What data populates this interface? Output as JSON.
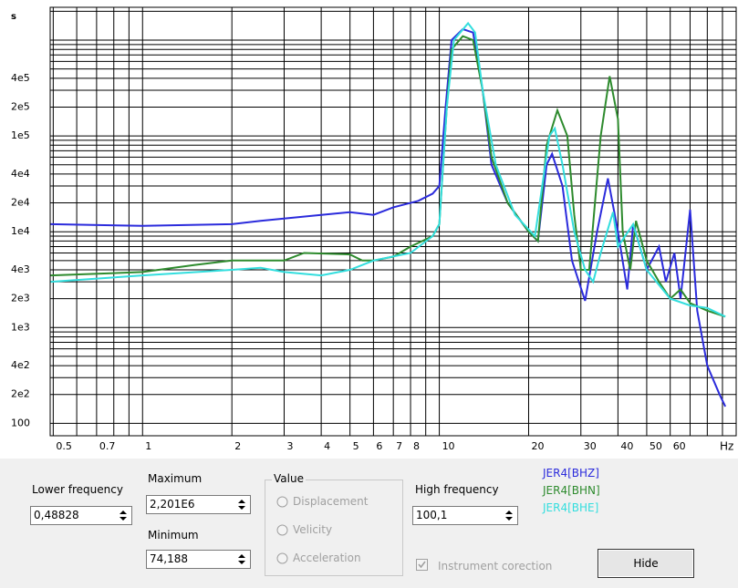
{
  "chart_data": {
    "type": "line",
    "ylabel": "s",
    "xlabel": "Hz",
    "xscale": "log",
    "yscale": "log",
    "xlim": [
      0.48828,
      100.1
    ],
    "ylim": [
      74.188,
      2201000
    ],
    "grid": true,
    "xticks": [
      0.5,
      0.7,
      1,
      2,
      3,
      4,
      5,
      6,
      7,
      8,
      10,
      20,
      30,
      40,
      50,
      60
    ],
    "x_minor_ticks": [
      0.6,
      0.8,
      0.9,
      9,
      70,
      80,
      90
    ],
    "yticks": [
      100,
      {
        "value": 200,
        "label": "2e2"
      },
      {
        "value": 400,
        "label": "4e2"
      },
      {
        "value": 1000,
        "label": "1e3"
      },
      {
        "value": 2000,
        "label": "2e3"
      },
      {
        "value": 4000,
        "label": "4e3"
      },
      {
        "value": 10000,
        "label": "1e4"
      },
      {
        "value": 20000,
        "label": "2e4"
      },
      {
        "value": 40000,
        "label": "4e4"
      },
      {
        "value": 100000,
        "label": "1e5"
      },
      {
        "value": 200000,
        "label": "2e5"
      },
      {
        "value": 400000,
        "label": "4e5"
      }
    ],
    "y_minor_ticks": [
      300,
      500,
      600,
      700,
      800,
      900,
      3000,
      5000,
      6000,
      7000,
      8000,
      9000,
      30000,
      50000,
      60000,
      70000,
      80000,
      90000,
      300000,
      500000,
      600000,
      700000,
      800000,
      900000,
      1000000,
      2000000
    ],
    "series": [
      {
        "name": "JER4[BHZ]",
        "color": "#2b2bdc",
        "x": [
          0.49,
          1,
          2,
          2.5,
          4,
          5,
          6,
          7,
          8.5,
          9.5,
          10,
          10.5,
          11,
          12,
          13,
          14,
          15,
          17,
          20,
          21.5,
          23,
          24,
          26,
          28,
          31,
          34,
          37,
          40,
          43,
          45,
          50,
          55,
          58,
          62,
          65,
          70,
          74,
          80,
          88,
          92
        ],
        "values": [
          12000,
          11500,
          12000,
          13000,
          15000,
          16000,
          15000,
          18000,
          21000,
          25000,
          30000,
          200000,
          1000000,
          1300000,
          1200000,
          300000,
          50000,
          20000,
          10000,
          8000,
          50000,
          65000,
          30000,
          5000,
          1900,
          10000,
          36000,
          10000,
          2500,
          12000,
          4000,
          7000,
          3000,
          6000,
          2000,
          17000,
          1500,
          400,
          200,
          150
        ]
      },
      {
        "name": "JER4[BHN]",
        "color": "#2e8b2e",
        "x": [
          0.49,
          1,
          1.5,
          2,
          3,
          3.5,
          5,
          5.5,
          6,
          7,
          8,
          9.5,
          10,
          10.6,
          11,
          12,
          13,
          14,
          15,
          17,
          20,
          21.5,
          23,
          25,
          27,
          28.5,
          30,
          32,
          35,
          37.5,
          40,
          41.5,
          44,
          46,
          50,
          55,
          60,
          65,
          70,
          80,
          92
        ],
        "values": [
          3500,
          3800,
          4500,
          5000,
          5000,
          6000,
          5800,
          5000,
          5000,
          5500,
          7000,
          9000,
          12000,
          200000,
          800000,
          1100000,
          1000000,
          300000,
          60000,
          20000,
          10000,
          8000,
          80000,
          185000,
          100000,
          15000,
          4000,
          4000,
          100000,
          420000,
          150000,
          10000,
          4000,
          13000,
          5000,
          3000,
          2000,
          2500,
          1800,
          1500,
          1300
        ]
      },
      {
        "name": "JER4[BHE]",
        "color": "#33dede",
        "x": [
          0.49,
          1,
          2,
          2.5,
          3,
          4,
          5,
          6,
          8,
          9.5,
          10,
          10.6,
          11.2,
          12.5,
          13.2,
          14,
          15.5,
          18,
          21,
          23.5,
          24.5,
          26,
          28.5,
          31,
          33,
          35,
          38.5,
          40,
          45,
          50,
          60,
          70,
          80,
          92
        ],
        "values": [
          3000,
          3500,
          4000,
          4200,
          3800,
          3500,
          4000,
          5000,
          6000,
          9000,
          12000,
          200000,
          1000000,
          1500000,
          1200000,
          300000,
          50000,
          15000,
          9000,
          100000,
          120000,
          50000,
          10000,
          4000,
          3000,
          6000,
          16000,
          7000,
          12000,
          4000,
          2000,
          1700,
          1600,
          1300
        ]
      }
    ]
  },
  "controls": {
    "lower_frequency": {
      "label": "Lower frequency",
      "value": "0,48828"
    },
    "maximum": {
      "label": "Maximum",
      "value": "2,201E6"
    },
    "minimum": {
      "label": "Minimum",
      "value": "74,188"
    },
    "value_group": {
      "title": "Value",
      "options": [
        "Displacement",
        "Velicity",
        "Acceleration"
      ]
    },
    "high_frequency": {
      "label": "High frequency",
      "value": "100,1"
    },
    "instrument_correction": {
      "label": "Instrument corection",
      "checked": true
    },
    "hide_button": "Hide"
  }
}
